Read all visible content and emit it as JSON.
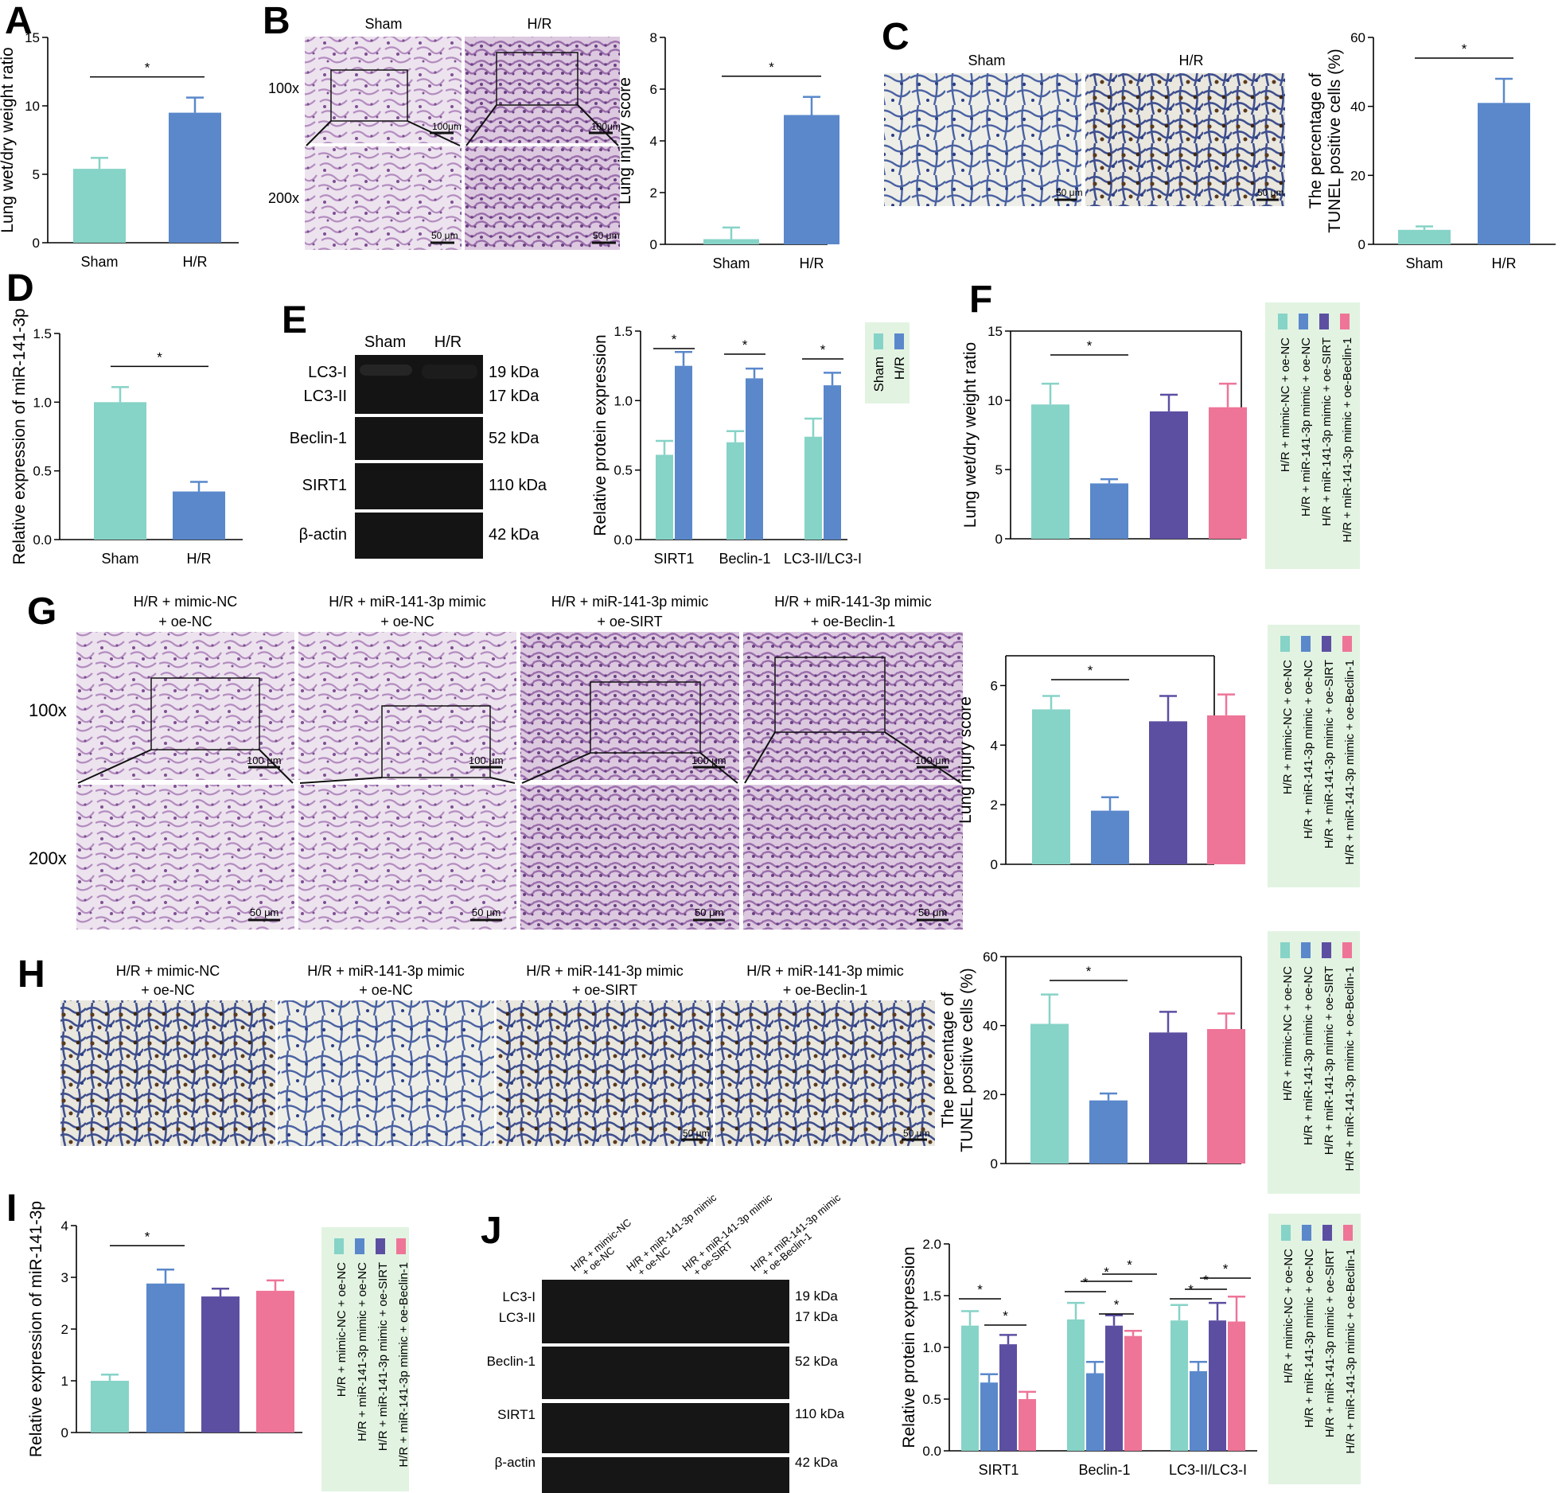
{
  "colors": {
    "sham": "#86d3c7",
    "hr": "#5a88cb",
    "g1": "#86d3c7",
    "g2": "#5a88cb",
    "g3": "#5c4fa2",
    "g4": "#ee7598",
    "legend_bg": "#e2f3e2"
  },
  "labels": {
    "sham": "Sham",
    "hr": "H/R",
    "mag100": "100x",
    "mag200": "200x",
    "sb100": "100 μm",
    "sb50": "50 μm",
    "sb100b": "100μm",
    "star": "*",
    "groups": [
      "H/R + mimic-NC + oe-NC",
      "H/R + miR-141-3p mimic + oe-NC",
      "H/R + miR-141-3p mimic + oe-SIRT",
      "H/R + miR-141-3p mimic + oe-Beclin-1"
    ],
    "img_titles": [
      {
        "l1": "H/R + mimic-NC",
        "l2": "+ oe-NC"
      },
      {
        "l1": "H/R + miR-141-3p mimic",
        "l2": "+ oe-NC"
      },
      {
        "l1": "H/R + miR-141-3p mimic",
        "l2": "+ oe-SIRT"
      },
      {
        "l1": "H/R + miR-141-3p mimic",
        "l2": "+ oe-Beclin-1"
      }
    ],
    "blot_rows": [
      "LC3-I",
      "LC3-II",
      "Beclin-1",
      "SIRT1",
      "β-actin"
    ],
    "blot_kda": [
      "19 kDa",
      "17 kDa",
      "52 kDa",
      "110 kDa",
      "42 kDa"
    ],
    "j_lanes": [
      {
        "l1": "H/R + mimic-NC",
        "l2": "+ oe-NC"
      },
      {
        "l1": "H/R + miR-141-3p mimic",
        "l2": "+ oe-NC"
      },
      {
        "l1": "H/R + miR-141-3p mimic",
        "l2": "+ oe-SIRT"
      },
      {
        "l1": "H/R + miR-141-3p mimic",
        "l2": "+ oe-Beclin-1"
      }
    ]
  },
  "panels": {
    "A": "A",
    "B": "B",
    "C": "C",
    "D": "D",
    "E": "E",
    "F": "F",
    "G": "G",
    "H": "H",
    "I": "I",
    "J": "J"
  },
  "chart_data": [
    {
      "panel": "A",
      "type": "bar",
      "categories": [
        "Sham",
        "H/R"
      ],
      "values": [
        5.4,
        9.5
      ],
      "errors": [
        0.8,
        1.1
      ],
      "ylabel": "Lung wet/dry weight ratio",
      "ylim": [
        0,
        15
      ],
      "yticks": [
        0,
        5,
        10,
        15
      ],
      "sig": [
        [
          "Sham",
          "H/R"
        ]
      ]
    },
    {
      "panel": "B",
      "type": "bar",
      "categories": [
        "Sham",
        "H/R"
      ],
      "values": [
        0.2,
        5.0
      ],
      "errors": [
        0.45,
        0.7
      ],
      "ylabel": "Lung injury score",
      "ylim": [
        0,
        8
      ],
      "yticks": [
        0,
        2,
        4,
        6,
        8
      ],
      "sig": [
        [
          "Sham",
          "H/R"
        ]
      ]
    },
    {
      "panel": "C",
      "type": "bar",
      "categories": [
        "Sham",
        "H/R"
      ],
      "values": [
        4.2,
        41
      ],
      "errors": [
        1.0,
        7.0
      ],
      "ylabel": [
        "The percentage of",
        "TUNEL positive cells (%)"
      ],
      "ylim": [
        0,
        60
      ],
      "yticks": [
        0,
        20,
        40,
        60
      ],
      "sig": [
        [
          "Sham",
          "H/R"
        ]
      ]
    },
    {
      "panel": "D",
      "type": "bar",
      "categories": [
        "Sham",
        "H/R"
      ],
      "values": [
        1.0,
        0.35
      ],
      "errors": [
        0.11,
        0.07
      ],
      "ylabel": "Relative expression of miR-141-3p",
      "ylim": [
        0,
        1.5
      ],
      "yticks": [
        "0.0",
        "0.5",
        "1.0",
        "1.5"
      ],
      "sig": [
        [
          "Sham",
          "H/R"
        ]
      ]
    },
    {
      "panel": "E",
      "type": "bar",
      "categories": [
        "SIRT1",
        "Beclin-1",
        "LC3-II/LC3-I"
      ],
      "series": [
        {
          "name": "Sham",
          "values": [
            0.61,
            0.7,
            0.74
          ],
          "errors": [
            0.1,
            0.08,
            0.13
          ]
        },
        {
          "name": "H/R",
          "values": [
            1.25,
            1.16,
            1.11
          ],
          "errors": [
            0.1,
            0.07,
            0.09
          ]
        }
      ],
      "ylabel": "Relative protein expression",
      "ylim": [
        0,
        1.5
      ],
      "yticks": [
        "0.0",
        "0.5",
        "1.0",
        "1.5"
      ]
    },
    {
      "panel": "F",
      "type": "bar",
      "categories": [
        "H/R + mimic-NC + oe-NC",
        "H/R + miR-141-3p mimic + oe-NC",
        "H/R + miR-141-3p mimic + oe-SIRT",
        "H/R + miR-141-3p mimic + oe-Beclin-1"
      ],
      "values": [
        9.7,
        4.0,
        9.2,
        9.5
      ],
      "errors": [
        1.5,
        0.3,
        1.2,
        1.7
      ],
      "ylabel": "Lung wet/dry weight ratio",
      "ylim": [
        0,
        15
      ],
      "yticks": [
        0,
        5,
        10,
        15
      ]
    },
    {
      "panel": "G",
      "type": "bar",
      "categories": [
        "H/R + mimic-NC + oe-NC",
        "H/R + miR-141-3p mimic + oe-NC",
        "H/R + miR-141-3p mimic + oe-SIRT",
        "H/R + miR-141-3p mimic + oe-Beclin-1"
      ],
      "values": [
        5.2,
        1.8,
        4.8,
        5.0
      ],
      "errors": [
        0.45,
        0.45,
        0.85,
        0.7
      ],
      "ylabel": "Lung injury score",
      "ylim": [
        0,
        7
      ],
      "yticks": [
        0,
        2,
        4,
        6
      ]
    },
    {
      "panel": "H",
      "type": "bar",
      "categories": [
        "H/R + mimic-NC + oe-NC",
        "H/R + miR-141-3p mimic + oe-NC",
        "H/R + miR-141-3p mimic + oe-SIRT",
        "H/R + miR-141-3p mimic + oe-Beclin-1"
      ],
      "values": [
        40.5,
        18.3,
        38.0,
        39.0
      ],
      "errors": [
        8.5,
        2.0,
        6.0,
        4.5
      ],
      "ylabel": [
        "The percentage of",
        "TUNEL positive cells (%)"
      ],
      "ylim": [
        0,
        60
      ],
      "yticks": [
        0,
        20,
        40,
        60
      ]
    },
    {
      "panel": "I",
      "type": "bar",
      "categories": [
        "H/R + mimic-NC + oe-NC",
        "H/R + miR-141-3p mimic + oe-NC",
        "H/R + miR-141-3p mimic + oe-SIRT",
        "H/R + miR-141-3p mimic + oe-Beclin-1"
      ],
      "values": [
        1.0,
        2.88,
        2.63,
        2.74
      ],
      "errors": [
        0.12,
        0.27,
        0.15,
        0.2
      ],
      "ylabel": "Relative expression of miR-141-3p",
      "ylim": [
        0,
        4
      ],
      "yticks": [
        0,
        1,
        2,
        3,
        4
      ]
    },
    {
      "panel": "J",
      "type": "bar",
      "categories": [
        "SIRT1",
        "Beclin-1",
        "LC3-II/LC3-I"
      ],
      "series": [
        {
          "name": "H/R + mimic-NC + oe-NC",
          "values": [
            1.21,
            1.27,
            1.26
          ],
          "errors": [
            0.14,
            0.16,
            0.15
          ]
        },
        {
          "name": "H/R + miR-141-3p mimic + oe-NC",
          "values": [
            0.66,
            0.75,
            0.77
          ],
          "errors": [
            0.08,
            0.11,
            0.09
          ]
        },
        {
          "name": "H/R + miR-141-3p mimic + oe-SIRT",
          "values": [
            1.03,
            1.21,
            1.26
          ],
          "errors": [
            0.09,
            0.1,
            0.17
          ]
        },
        {
          "name": "H/R + miR-141-3p mimic + oe-Beclin-1",
          "values": [
            0.5,
            1.11,
            1.25
          ],
          "errors": [
            0.07,
            0.05,
            0.24
          ]
        }
      ],
      "ylabel": "Relative protein expression",
      "ylim": [
        0,
        2.0
      ],
      "yticks": [
        "0.0",
        "0.5",
        "1.0",
        "1.5",
        "2.0"
      ]
    }
  ]
}
